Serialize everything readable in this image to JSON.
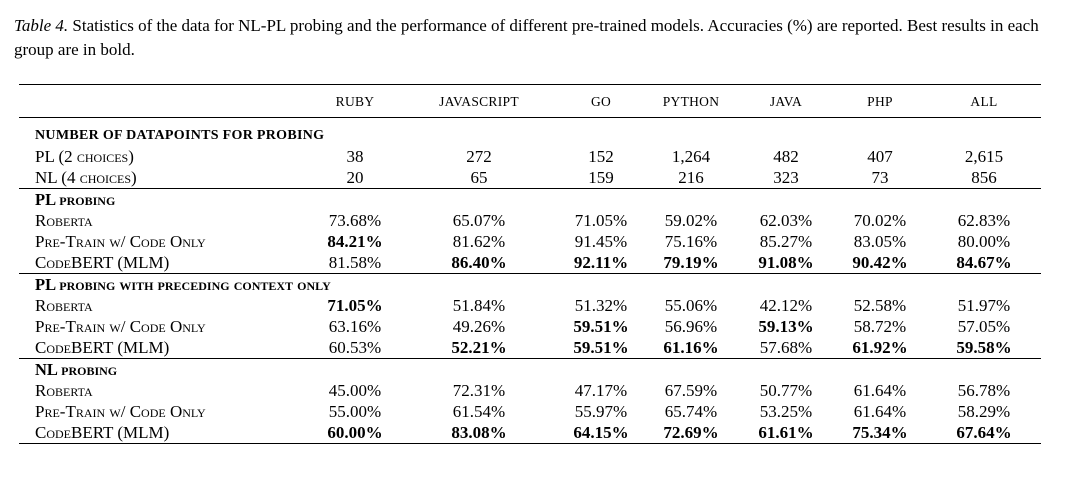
{
  "caption": {
    "label": "Table 4.",
    "text": " Statistics of the data for NL-PL probing and the performance of different pre-trained models. Accuracies (%) are reported. Best results in each group are in bold."
  },
  "columns": [
    "RUBY",
    "JAVASCRIPT",
    "GO",
    "PYTHON",
    "JAVA",
    "PHP",
    "ALL"
  ],
  "datapoints": {
    "title": "NUMBER OF DATAPOINTS FOR PROBING",
    "rows": [
      {
        "name": "PL (2 choices)",
        "values": [
          "38",
          "272",
          "152",
          "1,264",
          "482",
          "407",
          "2,615"
        ]
      },
      {
        "name": "NL (4 choices)",
        "values": [
          "20",
          "65",
          "159",
          "216",
          "323",
          "73",
          "856"
        ]
      }
    ]
  },
  "groups": [
    {
      "title": "PL probing",
      "rows": [
        {
          "name": "Roberta",
          "values": [
            "73.68%",
            "65.07%",
            "71.05%",
            "59.02%",
            "62.03%",
            "70.02%",
            "62.83%"
          ],
          "bold": [
            false,
            false,
            false,
            false,
            false,
            false,
            false
          ]
        },
        {
          "name": "Pre-Train w/ Code Only",
          "values": [
            "84.21%",
            "81.62%",
            "91.45%",
            "75.16%",
            "85.27%",
            "83.05%",
            "80.00%"
          ],
          "bold": [
            true,
            false,
            false,
            false,
            false,
            false,
            false
          ]
        },
        {
          "name": "CodeBERT (MLM)",
          "values": [
            "81.58%",
            "86.40%",
            "92.11%",
            "79.19%",
            "91.08%",
            "90.42%",
            "84.67%"
          ],
          "bold": [
            false,
            true,
            true,
            true,
            true,
            true,
            true
          ]
        }
      ]
    },
    {
      "title": "PL probing with preceding context only",
      "rows": [
        {
          "name": "Roberta",
          "values": [
            "71.05%",
            "51.84%",
            "51.32%",
            "55.06%",
            "42.12%",
            "52.58%",
            "51.97%"
          ],
          "bold": [
            true,
            false,
            false,
            false,
            false,
            false,
            false
          ]
        },
        {
          "name": "Pre-Train w/ Code Only",
          "values": [
            "63.16%",
            "49.26%",
            "59.51%",
            "56.96%",
            "59.13%",
            "58.72%",
            "57.05%"
          ],
          "bold": [
            false,
            false,
            true,
            false,
            true,
            false,
            false
          ]
        },
        {
          "name": "CodeBERT (MLM)",
          "values": [
            "60.53%",
            "52.21%",
            "59.51%",
            "61.16%",
            "57.68%",
            "61.92%",
            "59.58%"
          ],
          "bold": [
            false,
            true,
            true,
            true,
            false,
            true,
            true
          ]
        }
      ]
    },
    {
      "title": "NL probing",
      "rows": [
        {
          "name": "Roberta",
          "values": [
            "45.00%",
            "72.31%",
            "47.17%",
            "67.59%",
            "50.77%",
            "61.64%",
            "56.78%"
          ],
          "bold": [
            false,
            false,
            false,
            false,
            false,
            false,
            false
          ]
        },
        {
          "name": "Pre-Train w/ Code Only",
          "values": [
            "55.00%",
            "61.54%",
            "55.97%",
            "65.74%",
            "53.25%",
            "61.64%",
            "58.29%"
          ],
          "bold": [
            false,
            false,
            false,
            false,
            false,
            false,
            false
          ]
        },
        {
          "name": "CodeBERT (MLM)",
          "values": [
            "60.00%",
            "83.08%",
            "64.15%",
            "72.69%",
            "61.61%",
            "75.34%",
            "67.64%"
          ],
          "bold": [
            true,
            true,
            true,
            true,
            true,
            true,
            true
          ]
        }
      ]
    }
  ]
}
